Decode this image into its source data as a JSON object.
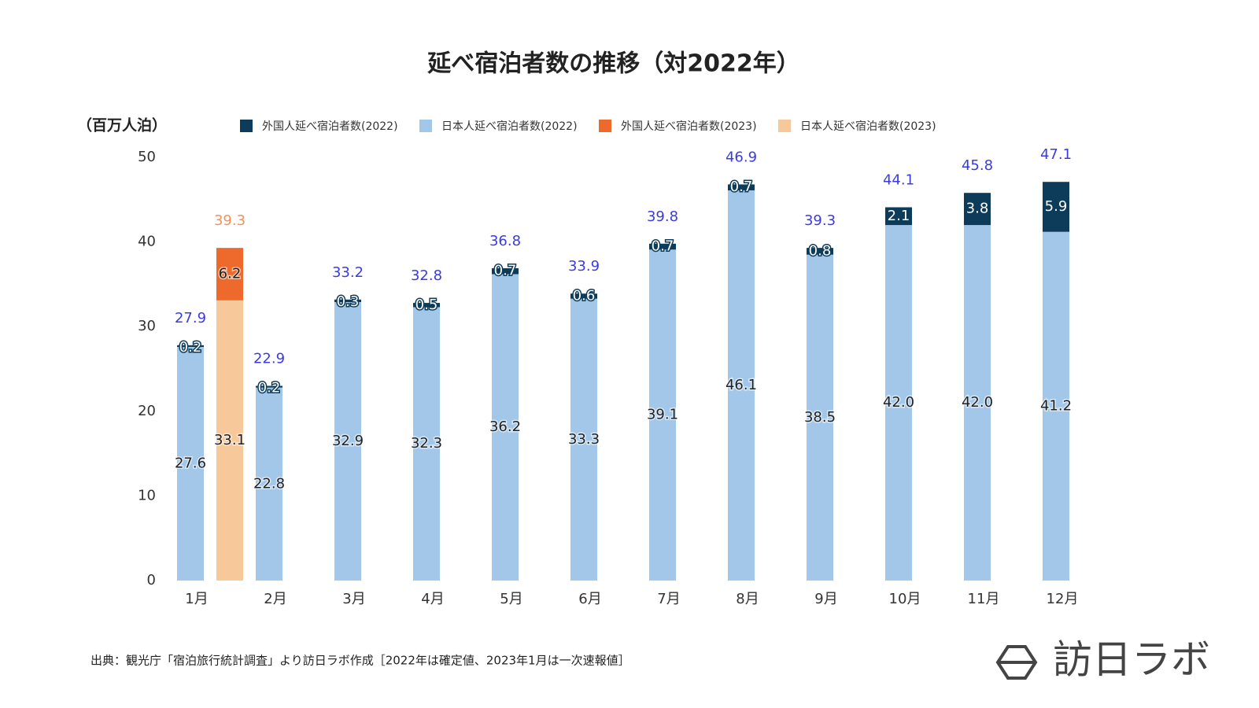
{
  "chart_data": {
    "type": "bar",
    "stacked": true,
    "title": "延べ宿泊者数の推移（対2022年）",
    "y_label": "（百万人泊）",
    "categories": [
      "1月",
      "2月",
      "3月",
      "4月",
      "5月",
      "6月",
      "7月",
      "8月",
      "9月",
      "10月",
      "11月",
      "12月"
    ],
    "ylim": [
      0,
      50
    ],
    "yticks": [
      0,
      10,
      20,
      30,
      40,
      50
    ],
    "stacks": [
      {
        "total_color": "#3b3bdf",
        "totals": [
          27.9,
          22.9,
          33.2,
          32.8,
          36.8,
          33.9,
          39.8,
          46.9,
          39.3,
          44.1,
          45.8,
          47.1
        ],
        "series": [
          {
            "name": "外国人延べ宿泊者数(2022)",
            "color": "#0d3c5a",
            "values": [
              0.2,
              0.2,
              0.3,
              0.5,
              0.7,
              0.6,
              0.7,
              0.7,
              0.8,
              2.1,
              3.8,
              5.9
            ]
          },
          {
            "name": "日本人延べ宿泊者数(2022)",
            "color": "#a3c7e9",
            "values": [
              27.6,
              22.8,
              32.9,
              32.3,
              36.2,
              33.3,
              39.1,
              46.1,
              38.5,
              42,
              42,
              41.2
            ],
            "value_labels": [
              "27.6",
              "22.8",
              "32.9",
              "32.3",
              "36.2",
              "33.3",
              "39.1",
              "46.1",
              "38.5",
              "42.0",
              "42.0",
              "41.2"
            ]
          }
        ]
      },
      {
        "total_color": "#f0935e",
        "totals": [
          39.3,
          null,
          null,
          null,
          null,
          null,
          null,
          null,
          null,
          null,
          null,
          null
        ],
        "series": [
          {
            "name": "外国人延べ宿泊者数(2023)",
            "color": "#ee6a2c",
            "values": [
              6.2,
              null,
              null,
              null,
              null,
              null,
              null,
              null,
              null,
              null,
              null,
              null
            ]
          },
          {
            "name": "日本人延べ宿泊者数(2023)",
            "color": "#f6c89a",
            "values": [
              33.1,
              null,
              null,
              null,
              null,
              null,
              null,
              null,
              null,
              null,
              null,
              null
            ]
          }
        ]
      }
    ],
    "source": "出典：観光庁「宿泊旅行統計調査」より訪日ラボ作成［2022年は確定値、2023年1月は一次速報値］",
    "brand": "訪日ラボ"
  }
}
